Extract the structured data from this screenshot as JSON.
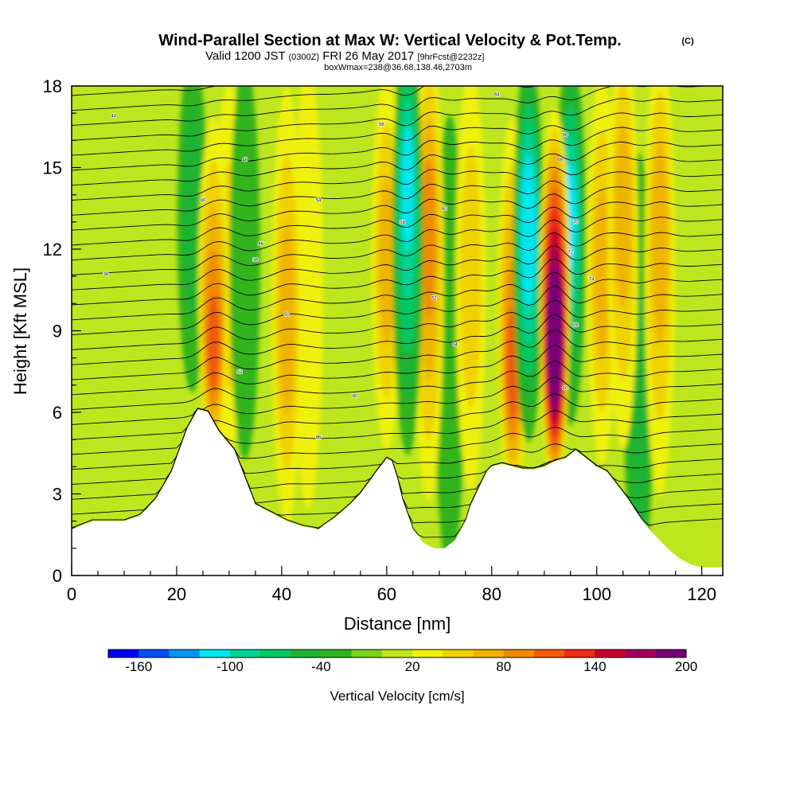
{
  "chart_data": {
    "type": "heatmap",
    "title": "Wind-Parallel Section at Max W: Vertical Velocity & Pot.Temp.",
    "title_mark": "(C)",
    "subtitle_valid": "Valid 1200 JST",
    "subtitle_z": "(0300Z)",
    "subtitle_date": "FRI 26 May 2017",
    "subtitle_fcst": "[9hrFcst@2232z]",
    "subtitle_box": "boxWmax=238@36.68,138.46,2703m",
    "xlabel": "Distance [nm]",
    "ylabel": "Height [Kft MSL]",
    "xlim": [
      0,
      124
    ],
    "ylim": [
      0,
      18
    ],
    "x_ticks": [
      "0",
      "20",
      "40",
      "60",
      "80",
      "100",
      "120"
    ],
    "y_ticks": [
      "0",
      "3",
      "6",
      "9",
      "12",
      "15",
      "18"
    ],
    "colorbar": {
      "label": "Vertical Velocity [cm/s]",
      "tick_labels": [
        "-160",
        "-100",
        "-40",
        "20",
        "80",
        "140",
        "200"
      ],
      "levels": [
        -180,
        -160,
        -140,
        -120,
        -100,
        -80,
        -60,
        -40,
        -20,
        0,
        20,
        40,
        60,
        80,
        100,
        120,
        140,
        160,
        180,
        200
      ],
      "colors": [
        "#0000f0",
        "#0050f0",
        "#0096f0",
        "#00e6f0",
        "#00d296",
        "#00c864",
        "#1eb432",
        "#32b41e",
        "#78d21e",
        "#bee61e",
        "#f0f00a",
        "#f0d200",
        "#f0b400",
        "#f08c00",
        "#f05a0a",
        "#f02814",
        "#c8002d",
        "#a0005a",
        "#780078"
      ]
    },
    "terrain": {
      "x": [
        0,
        4,
        7,
        10,
        13,
        16,
        19,
        22,
        24,
        26,
        28,
        31,
        33,
        35,
        38,
        41,
        44,
        47,
        50,
        53,
        55,
        58,
        60,
        61,
        62,
        63,
        65,
        67,
        69,
        71,
        73,
        75,
        76,
        77,
        78,
        79,
        80,
        82,
        84,
        86,
        88,
        90,
        92,
        94,
        96,
        98,
        100,
        102,
        104,
        106,
        108,
        110,
        112,
        114,
        116,
        118,
        120,
        122,
        124
      ],
      "height_kft": [
        1.7,
        2.0,
        2.0,
        2.0,
        2.2,
        2.8,
        3.8,
        5.4,
        6.1,
        6.0,
        5.3,
        4.6,
        3.6,
        2.6,
        2.3,
        2.0,
        1.8,
        1.7,
        2.1,
        2.6,
        3.0,
        3.8,
        4.3,
        4.2,
        3.6,
        2.8,
        1.7,
        1.2,
        1.0,
        1.0,
        1.3,
        2.0,
        2.6,
        3.0,
        3.4,
        3.8,
        4.0,
        4.1,
        4.0,
        3.9,
        3.9,
        4.0,
        4.2,
        4.3,
        4.6,
        4.3,
        4.0,
        3.8,
        3.3,
        2.8,
        2.2,
        1.7,
        1.3,
        0.9,
        0.6,
        0.4,
        0.3,
        0.3,
        0.3
      ]
    },
    "updrafts": [
      {
        "x": 27,
        "z": 7.8,
        "w": 110
      },
      {
        "x": 30,
        "z": 10.5,
        "w": 40
      },
      {
        "x": 41,
        "z": 9.0,
        "w": 60
      },
      {
        "x": 45,
        "z": 11.0,
        "w": 30
      },
      {
        "x": 60,
        "z": 11.5,
        "w": 60
      },
      {
        "x": 68,
        "z": 13.0,
        "w": 90
      },
      {
        "x": 76,
        "z": 11.0,
        "w": 50
      },
      {
        "x": 84,
        "z": 7.0,
        "w": 110
      },
      {
        "x": 92,
        "z": 8.0,
        "w": 238
      },
      {
        "x": 101,
        "z": 11.0,
        "w": 60
      },
      {
        "x": 105,
        "z": 14.0,
        "w": 70
      },
      {
        "x": 112,
        "z": 13.0,
        "w": 60
      }
    ],
    "downdrafts": [
      {
        "x": 23,
        "z": 14.0,
        "w": -50
      },
      {
        "x": 33,
        "z": 12.0,
        "w": -40
      },
      {
        "x": 64,
        "z": 15.0,
        "w": -110
      },
      {
        "x": 72,
        "z": 6.0,
        "w": -40
      },
      {
        "x": 87,
        "z": 13.0,
        "w": -120
      },
      {
        "x": 95,
        "z": 13.5,
        "w": -110
      },
      {
        "x": 108,
        "z": 3.0,
        "w": -50
      }
    ],
    "theta_contour_labels": [
      {
        "text": "44",
        "x": 8,
        "z": 16.9
      },
      {
        "text": "40",
        "x": 25,
        "z": 13.8
      },
      {
        "text": "38",
        "x": 6.5,
        "z": 11.1
      },
      {
        "text": "48",
        "x": 33,
        "z": 15.3
      },
      {
        "text": "46",
        "x": 36,
        "z": 12.2
      },
      {
        "text": "36",
        "x": 35,
        "z": 11.6
      },
      {
        "text": "50",
        "x": 41,
        "z": 9.6
      },
      {
        "text": "52",
        "x": 32,
        "z": 7.5
      },
      {
        "text": "54",
        "x": 47,
        "z": 13.8
      },
      {
        "text": "56",
        "x": 59,
        "z": 16.6
      },
      {
        "text": "58",
        "x": 63,
        "z": 13.0
      },
      {
        "text": "60",
        "x": 54,
        "z": 6.6
      },
      {
        "text": "60",
        "x": 71,
        "z": 13.5
      },
      {
        "text": "62",
        "x": 69,
        "z": 10.2
      },
      {
        "text": "64",
        "x": 81,
        "z": 17.7
      },
      {
        "text": "64",
        "x": 73,
        "z": 8.5
      },
      {
        "text": "66",
        "x": 94,
        "z": 16.2
      },
      {
        "text": "68",
        "x": 93,
        "z": 15.3
      },
      {
        "text": "70",
        "x": 96,
        "z": 13.0
      },
      {
        "text": "72",
        "x": 95,
        "z": 11.9
      },
      {
        "text": "74",
        "x": 99,
        "z": 10.9
      },
      {
        "text": "76",
        "x": 96,
        "z": 9.2
      },
      {
        "text": "60",
        "x": 94,
        "z": 6.9
      },
      {
        "text": "86",
        "x": 47,
        "z": 5.1
      }
    ]
  }
}
